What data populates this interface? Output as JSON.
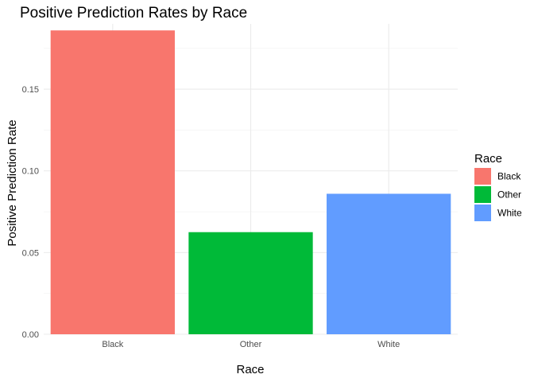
{
  "chart_data": {
    "type": "bar",
    "title": "Positive Prediction Rates by Race",
    "xlabel": "Race",
    "ylabel": "Positive Prediction Rate",
    "categories": [
      "Black",
      "Other",
      "White"
    ],
    "values": [
      0.186,
      0.0625,
      0.086
    ],
    "colors": [
      "#F8766D",
      "#00BA38",
      "#619CFF"
    ],
    "ylim": [
      0,
      0.19
    ],
    "yticks": [
      0.0,
      0.05,
      0.1,
      0.15
    ],
    "ytick_labels": [
      "0.00",
      "0.05",
      "0.10",
      "0.15"
    ],
    "grid": true,
    "legend": {
      "title": "Race",
      "placement": "right",
      "entries": [
        "Black",
        "Other",
        "White"
      ]
    }
  }
}
